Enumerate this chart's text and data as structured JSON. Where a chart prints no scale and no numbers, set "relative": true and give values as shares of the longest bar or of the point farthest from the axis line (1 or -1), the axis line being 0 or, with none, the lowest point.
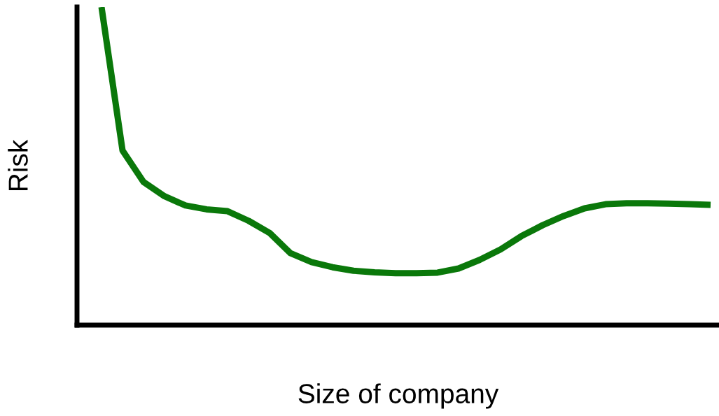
{
  "chart_data": {
    "type": "line",
    "relative": true,
    "xlabel": "Size of company",
    "ylabel": "Risk",
    "categories": [
      null,
      null,
      null,
      null,
      null,
      null,
      null,
      null,
      null,
      null,
      null,
      null,
      null,
      null,
      null,
      null,
      null,
      null,
      null,
      null,
      null,
      null,
      null,
      null,
      null,
      null,
      null,
      null,
      null,
      null
    ],
    "series": [
      {
        "color": "#0a780a",
        "values": [
          1.0,
          0.549,
          0.45,
          0.405,
          0.376,
          0.364,
          0.358,
          0.328,
          0.29,
          0.226,
          0.198,
          0.182,
          0.171,
          0.166,
          0.163,
          0.163,
          0.165,
          0.178,
          0.205,
          0.238,
          0.28,
          0.314,
          0.343,
          0.367,
          0.38,
          0.383,
          0.383,
          0.382,
          0.38,
          0.378
        ]
      }
    ],
    "grid": false,
    "legend": false,
    "tick_labels": false,
    "marker": "none",
    "line_style": "solid"
  }
}
